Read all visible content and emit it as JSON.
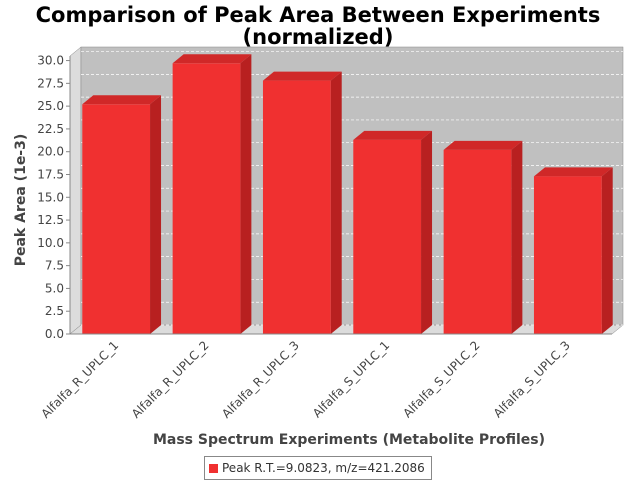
{
  "chart_data": {
    "type": "bar",
    "title": "Comparison of Peak Area Between Experiments",
    "subtitle": "(normalized)",
    "xlabel": "Mass Spectrum Experiments (Metabolite Profiles)",
    "ylabel": "Peak Area (1e-3)",
    "categories": [
      "Alfalfa_R_UPLC_1",
      "Alfalfa_R_UPLC_2",
      "Alfalfa_R_UPLC_3",
      "Alfalfa_S_UPLC_1",
      "Alfalfa_S_UPLC_2",
      "Alfalfa_S_UPLC_3"
    ],
    "series": [
      {
        "name": "Peak R.T.=9.0823, m/z=421.2086",
        "values": [
          25.2,
          29.7,
          27.8,
          21.3,
          20.2,
          17.3
        ],
        "color": "#f03030"
      }
    ],
    "ylim": [
      0,
      30.5
    ],
    "yticks": [
      "0.0",
      "2.5",
      "5.0",
      "7.5",
      "10.0",
      "12.5",
      "15.0",
      "17.5",
      "20.0",
      "22.5",
      "25.0",
      "27.5",
      "30.0"
    ],
    "grid": true,
    "legend_position": "bottom",
    "colors": {
      "plot_background": "#c0c0c0",
      "bar": "#f03030",
      "bar_side": "#b82020",
      "bar_top": "#d02828"
    }
  }
}
